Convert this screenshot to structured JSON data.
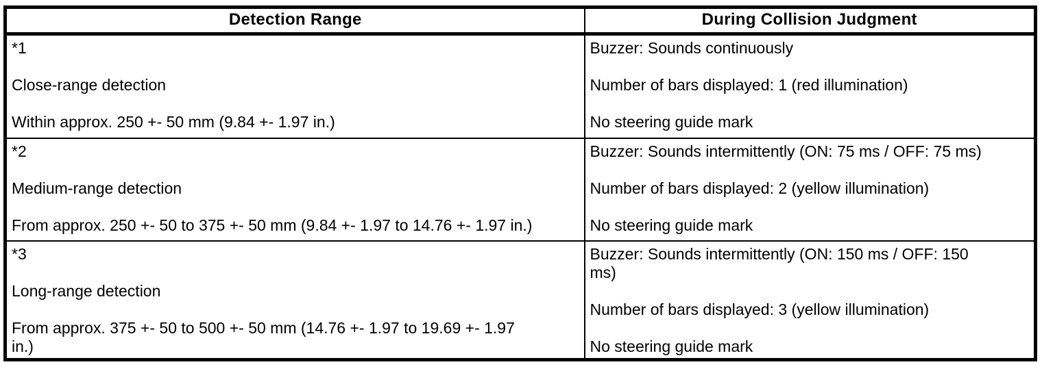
{
  "table": {
    "columns": [
      "Detection Range",
      "During Collision Judgment"
    ],
    "rows": [
      {
        "range": [
          "*1",
          "Close-range detection",
          "Within approx. 250 +- 50 mm (9.84 +- 1.97 in.)"
        ],
        "judgment": [
          "Buzzer: Sounds continuously",
          "Number of bars displayed: 1 (red illumination)",
          "No steering guide mark"
        ]
      },
      {
        "range": [
          "*2",
          "Medium-range detection",
          "From approx. 250 +- 50 to 375 +- 50 mm (9.84 +- 1.97 to 14.76 +- 1.97 in.)"
        ],
        "judgment": [
          "Buzzer: Sounds intermittently (ON: 75 ms / OFF: 75 ms)",
          "Number of bars displayed: 2 (yellow illumination)",
          "No steering guide mark"
        ]
      },
      {
        "range": [
          "*3",
          "Long-range detection",
          "From approx. 375 +- 50 to 500 +- 50 mm (14.76 +- 1.97 to 19.69 +- 1.97\nin.)"
        ],
        "judgment": [
          "Buzzer: Sounds intermittently (ON: 150 ms / OFF: 150\nms)",
          "Number of bars displayed: 3 (yellow illumination)",
          "No steering guide mark"
        ]
      }
    ]
  }
}
